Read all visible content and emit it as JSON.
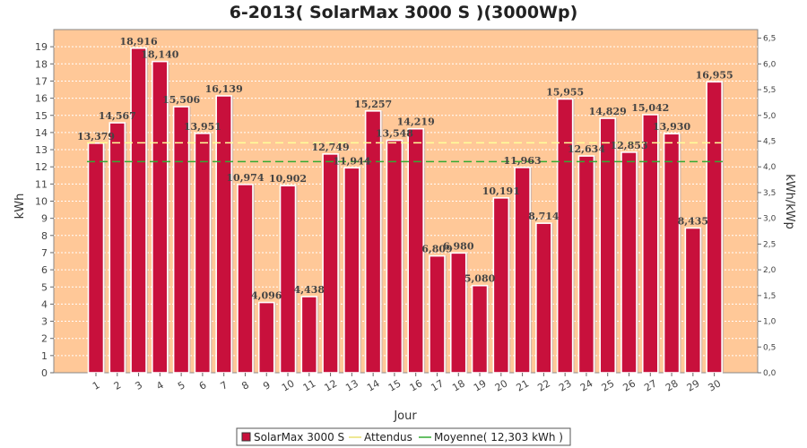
{
  "chart_data": {
    "type": "bar",
    "title": "6-2013( SolarMax 3000 S )(3000Wp)",
    "xlabel": "Jour",
    "ylabel": "kWh",
    "ylabel_right": "kWh/kWp",
    "ylim": [
      0,
      20
    ],
    "yticks": [
      0,
      1,
      2,
      3,
      4,
      5,
      6,
      7,
      8,
      9,
      10,
      11,
      12,
      13,
      14,
      15,
      16,
      17,
      18,
      19
    ],
    "ylim_right": [
      0,
      6.667
    ],
    "yticks_right": [
      "0,0",
      "0,5",
      "1,0",
      "1,5",
      "2,0",
      "2,5",
      "3,0",
      "3,5",
      "4,0",
      "4,5",
      "5,0",
      "5,5",
      "6,0",
      "6,5"
    ],
    "categories": [
      "1",
      "2",
      "3",
      "4",
      "5",
      "6",
      "7",
      "8",
      "9",
      "10",
      "11",
      "12",
      "13",
      "14",
      "15",
      "16",
      "17",
      "18",
      "19",
      "20",
      "21",
      "22",
      "23",
      "24",
      "25",
      "26",
      "27",
      "28",
      "29",
      "30"
    ],
    "series": [
      {
        "name": "SolarMax 3000 S",
        "color": "#c8103c",
        "values": [
          13.379,
          14.567,
          18.916,
          18.14,
          15.506,
          13.951,
          16.139,
          10.974,
          4.096,
          10.902,
          4.438,
          12.749,
          11.944,
          15.257,
          13.548,
          14.219,
          6.809,
          6.98,
          5.08,
          10.191,
          11.963,
          8.714,
          15.955,
          12.634,
          14.829,
          12.853,
          15.042,
          13.93,
          8.435,
          16.955
        ],
        "labels": [
          "13,379",
          "14,567",
          "18,916",
          "18,140",
          "15,506",
          "13,951",
          "16,139",
          "10,974",
          "4,096",
          "10,902",
          "4,438",
          "12,749",
          "11,944",
          "15,257",
          "13,548",
          "14,219",
          "6,809",
          "6,980",
          "5,080",
          "10,191",
          "11,963",
          "8,714",
          "15,955",
          "12,634",
          "14,829",
          "12,853",
          "15,042",
          "13,930",
          "8,435",
          "16,955"
        ]
      },
      {
        "name": "Attendus",
        "type": "line",
        "color": "#ffff99",
        "value": 13.4
      },
      {
        "name": "Moyenne( 12,303 kWh )",
        "type": "line",
        "color": "#33aa33",
        "value": 12.303
      }
    ],
    "grid": true,
    "background": "#ffc898",
    "legend": "bottom"
  }
}
